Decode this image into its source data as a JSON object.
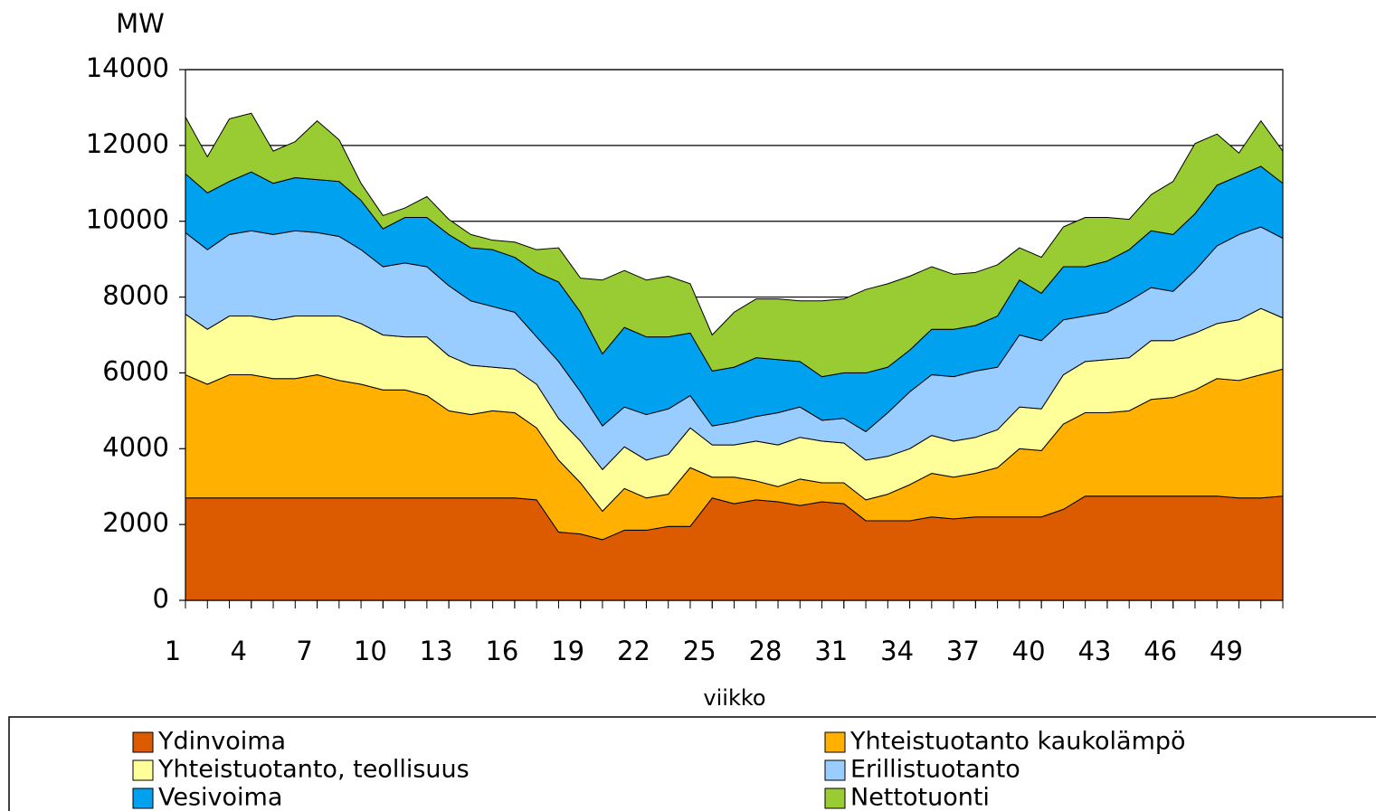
{
  "chart_data": {
    "type": "stacked_area",
    "y_label": "MW",
    "x_label": "viikko",
    "x": [
      1,
      2,
      3,
      4,
      5,
      6,
      7,
      8,
      9,
      10,
      11,
      12,
      13,
      14,
      15,
      16,
      17,
      18,
      19,
      20,
      21,
      22,
      23,
      24,
      25,
      26,
      27,
      28,
      29,
      30,
      31,
      32,
      33,
      34,
      35,
      36,
      37,
      38,
      39,
      40,
      41,
      42,
      43,
      44,
      45,
      46,
      47,
      48,
      49,
      50,
      51
    ],
    "xlim": [
      1,
      51
    ],
    "xticks": [
      1,
      4,
      7,
      10,
      13,
      16,
      19,
      22,
      25,
      28,
      31,
      34,
      37,
      40,
      43,
      46,
      49
    ],
    "ylim": [
      0,
      14000
    ],
    "yticks": [
      0,
      2000,
      4000,
      6000,
      8000,
      10000,
      12000,
      14000
    ],
    "grid": true,
    "legend": "bottom",
    "series": [
      {
        "name": "Ydinvoima",
        "color": "#dc5a00",
        "values": [
          2700,
          2700,
          2700,
          2700,
          2700,
          2700,
          2700,
          2700,
          2700,
          2700,
          2700,
          2700,
          2700,
          2700,
          2700,
          2700,
          2650,
          1800,
          1750,
          1600,
          1850,
          1850,
          1950,
          1950,
          2700,
          2550,
          2650,
          2600,
          2500,
          2600,
          2550,
          2100,
          2100,
          2100,
          2200,
          2150,
          2200,
          2200,
          2200,
          2200,
          2400,
          2750,
          2750,
          2750,
          2750,
          2750,
          2750,
          2750,
          2700,
          2700,
          2750
        ]
      },
      {
        "name": "Yhteistuotanto kaukolämpö",
        "color": "#ffb000",
        "values": [
          3250,
          3000,
          3250,
          3250,
          3150,
          3150,
          3250,
          3100,
          3000,
          2850,
          2850,
          2700,
          2300,
          2200,
          2300,
          2250,
          1900,
          1900,
          1350,
          750,
          1100,
          850,
          850,
          1550,
          550,
          700,
          500,
          400,
          700,
          500,
          550,
          550,
          700,
          950,
          1150,
          1100,
          1150,
          1300,
          1800,
          1750,
          2250,
          2200,
          2200,
          2250,
          2550,
          2600,
          2800,
          3100,
          3100,
          3250,
          3350
        ]
      },
      {
        "name": "Yhteistuotanto, teollisuus",
        "color": "#ffff99",
        "values": [
          1600,
          1450,
          1550,
          1550,
          1550,
          1650,
          1550,
          1700,
          1600,
          1450,
          1400,
          1550,
          1450,
          1300,
          1150,
          1150,
          1150,
          1100,
          1100,
          1100,
          1100,
          1000,
          1050,
          1050,
          850,
          850,
          1050,
          1100,
          1100,
          1100,
          1050,
          1050,
          1000,
          950,
          1000,
          950,
          950,
          1000,
          1100,
          1100,
          1300,
          1350,
          1400,
          1400,
          1550,
          1500,
          1500,
          1450,
          1600,
          1750,
          1350
        ]
      },
      {
        "name": "Erillistuotanto",
        "color": "#99ccff",
        "values": [
          2150,
          2100,
          2150,
          2250,
          2250,
          2250,
          2200,
          2100,
          1950,
          1800,
          1950,
          1850,
          1850,
          1700,
          1600,
          1500,
          1250,
          1500,
          1300,
          1150,
          1050,
          1200,
          1200,
          850,
          500,
          600,
          650,
          850,
          800,
          550,
          650,
          750,
          1150,
          1500,
          1600,
          1700,
          1750,
          1650,
          1900,
          1800,
          1450,
          1200,
          1250,
          1500,
          1400,
          1300,
          1650,
          2050,
          2250,
          2150,
          2100
        ]
      },
      {
        "name": "Vesivoima",
        "color": "#00a2f0",
        "values": [
          1550,
          1500,
          1400,
          1550,
          1350,
          1400,
          1400,
          1450,
          1300,
          1000,
          1200,
          1300,
          1350,
          1400,
          1500,
          1450,
          1700,
          2100,
          2100,
          1900,
          2100,
          2050,
          1900,
          1650,
          1450,
          1450,
          1550,
          1400,
          1200,
          1150,
          1200,
          1550,
          1200,
          1100,
          1200,
          1250,
          1200,
          1350,
          1450,
          1250,
          1400,
          1300,
          1350,
          1350,
          1500,
          1500,
          1500,
          1600,
          1550,
          1600,
          1450
        ]
      },
      {
        "name": "Nettotuonti",
        "color": "#99cc33",
        "values": [
          1500,
          950,
          1650,
          1550,
          850,
          950,
          1550,
          1100,
          450,
          350,
          250,
          550,
          400,
          350,
          250,
          400,
          600,
          900,
          900,
          1950,
          1500,
          1500,
          1600,
          1300,
          950,
          1450,
          1550,
          1600,
          1600,
          2000,
          1950,
          2200,
          2200,
          1950,
          1650,
          1450,
          1400,
          1350,
          850,
          950,
          1050,
          1300,
          1150,
          800,
          950,
          1400,
          1850,
          1350,
          600,
          1200,
          850
        ]
      }
    ]
  }
}
